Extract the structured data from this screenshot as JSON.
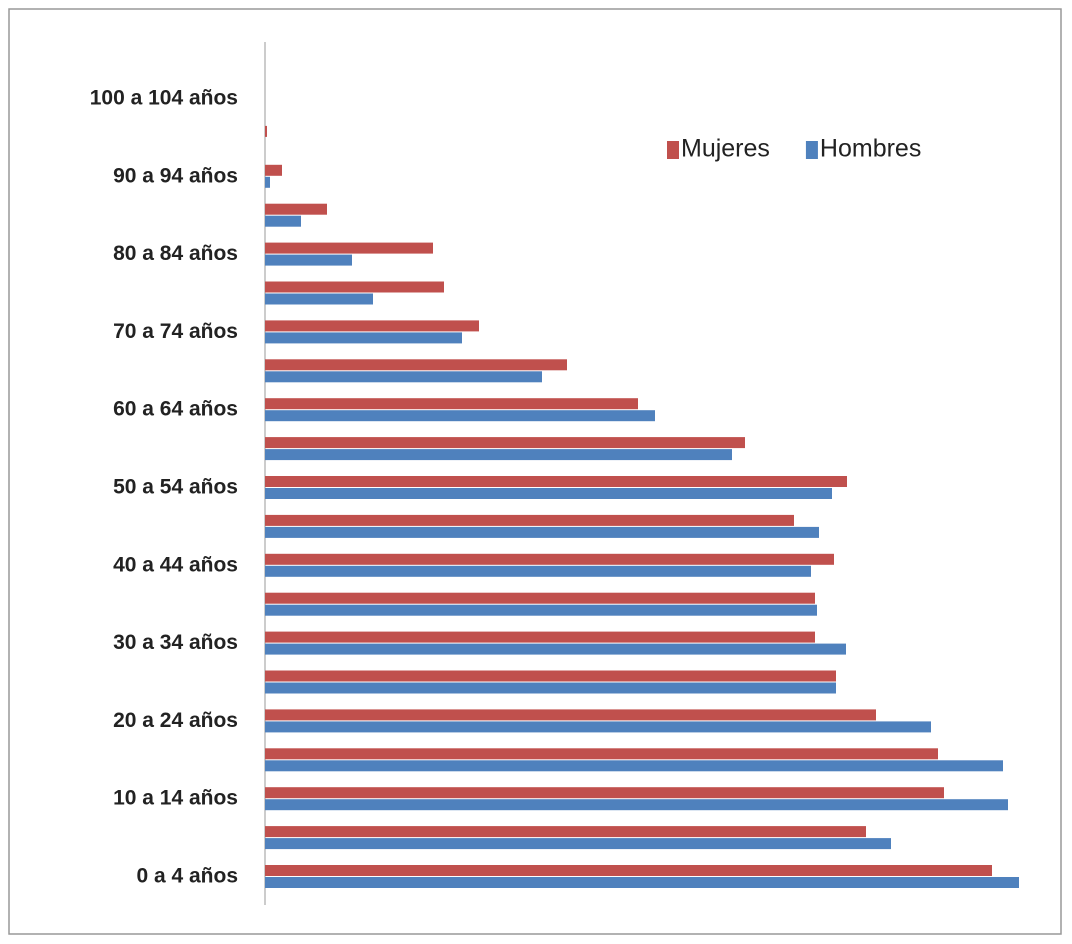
{
  "chart_data": {
    "type": "bar",
    "orientation": "horizontal",
    "categories": [
      "0 a 4 años",
      null,
      "10 a 14 años",
      null,
      "20 a 24 años",
      null,
      "30 a 34 años",
      null,
      "40 a 44 años",
      null,
      "50 a 54 años",
      null,
      "60 a 64 años",
      null,
      "70 a 74 años",
      null,
      "80 a 84 años",
      null,
      "90 a 94 años",
      null,
      "100 a 104 años"
    ],
    "series": [
      {
        "name": "Mujeres",
        "color": "#c0504d",
        "values": [
          727,
          601,
          679,
          673,
          611,
          571,
          550,
          550,
          569,
          529,
          582,
          480,
          373,
          302,
          214,
          179,
          168,
          62,
          17,
          2,
          0
        ]
      },
      {
        "name": "Hombres",
        "color": "#4f81bd",
        "values": [
          754,
          626,
          743,
          738,
          666,
          571,
          581,
          552,
          546,
          554,
          567,
          467,
          390,
          277,
          197,
          108,
          87,
          36,
          5,
          0,
          0
        ]
      }
    ],
    "legend": "top-right"
  }
}
